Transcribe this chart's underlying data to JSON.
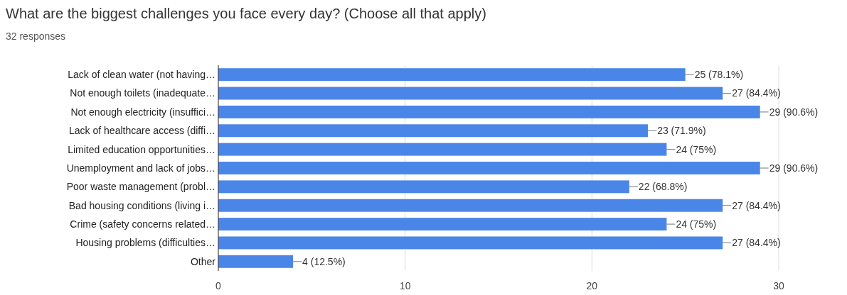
{
  "chart_data": {
    "type": "bar",
    "orientation": "horizontal",
    "title": "What are the biggest challenges you face every day? (Choose all that apply)",
    "subtitle": "32 responses",
    "categories": [
      "Lack of clean water (not having…",
      "Not enough toilets (inadequate…",
      "Not enough electricity (insuffici…",
      "Lack of healthcare access (diffi…",
      "Limited education opportunities…",
      "Unemployment and lack of jobs…",
      "Poor waste management (probl…",
      "Bad housing conditions (living i…",
      "Crime (safety concerns related…",
      "Housing problems (difficulties…",
      "Other"
    ],
    "values": [
      25,
      27,
      29,
      23,
      24,
      29,
      22,
      27,
      24,
      27,
      4
    ],
    "value_labels": [
      "25 (78.1%)",
      "27 (84.4%)",
      "29 (90.6%)",
      "23 (71.9%)",
      "24 (75%)",
      "29 (90.6%)",
      "22 (68.8%)",
      "27 (84.4%)",
      "24 (75%)",
      "27 (84.4%)",
      "4 (12.5%)"
    ],
    "color": "#4a86e8",
    "xlim": [
      0,
      30
    ],
    "xticks": [
      0,
      10,
      20,
      30
    ],
    "grid": "x"
  }
}
